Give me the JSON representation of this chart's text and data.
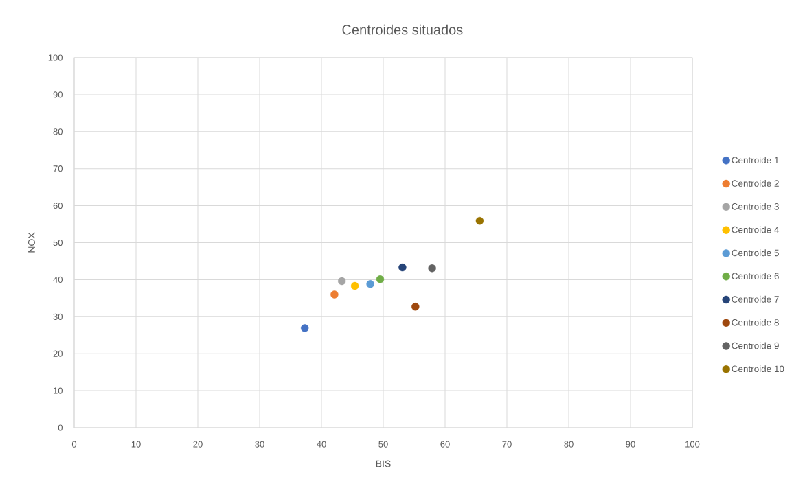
{
  "chart_data": {
    "type": "scatter",
    "title": "Centroides situados",
    "xlabel": "BIS",
    "ylabel": "NOX",
    "xlim": [
      0,
      100
    ],
    "ylim": [
      0,
      100
    ],
    "xticks": [
      0,
      10,
      20,
      30,
      40,
      50,
      60,
      70,
      80,
      90,
      100
    ],
    "yticks": [
      0,
      10,
      20,
      30,
      40,
      50,
      60,
      70,
      80,
      90,
      100
    ],
    "grid": true,
    "legend": "right",
    "marker": "circle",
    "series": [
      {
        "name": "Centroide 1",
        "color": "#4472c4",
        "x": [
          37.3
        ],
        "values": [
          26.9
        ]
      },
      {
        "name": "Centroide 2",
        "color": "#ed7d31",
        "x": [
          42.1
        ],
        "values": [
          36.0
        ]
      },
      {
        "name": "Centroide 3",
        "color": "#a5a5a5",
        "x": [
          43.3
        ],
        "values": [
          39.6
        ]
      },
      {
        "name": "Centroide 4",
        "color": "#ffc000",
        "x": [
          45.4
        ],
        "values": [
          38.3
        ]
      },
      {
        "name": "Centroide 5",
        "color": "#5b9bd5",
        "x": [
          47.9
        ],
        "values": [
          38.8
        ]
      },
      {
        "name": "Centroide 6",
        "color": "#70ad47",
        "x": [
          49.5
        ],
        "values": [
          40.1
        ]
      },
      {
        "name": "Centroide 7",
        "color": "#264478",
        "x": [
          53.1
        ],
        "values": [
          43.3
        ]
      },
      {
        "name": "Centroide 8",
        "color": "#9e480e",
        "x": [
          55.2
        ],
        "values": [
          32.7
        ]
      },
      {
        "name": "Centroide 9",
        "color": "#636363",
        "x": [
          57.9
        ],
        "values": [
          43.1
        ]
      },
      {
        "name": "Centroide 10",
        "color": "#997300",
        "x": [
          65.6
        ],
        "values": [
          55.9
        ]
      }
    ]
  }
}
